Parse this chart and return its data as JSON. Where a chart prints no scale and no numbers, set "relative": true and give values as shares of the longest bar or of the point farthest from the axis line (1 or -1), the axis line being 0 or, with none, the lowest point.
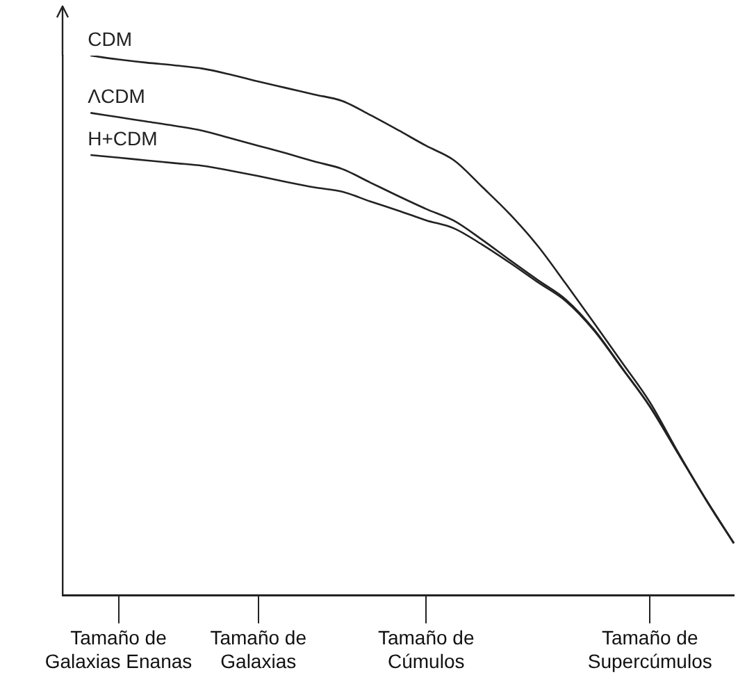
{
  "chart_data": {
    "type": "line",
    "relative": true,
    "categories": [
      null,
      null,
      "Tamaño de\nGalaxias Enanas",
      null,
      null,
      null,
      null,
      "Tamaño de\nGalaxias",
      null,
      null,
      null,
      null,
      null,
      "Tamaño de\nCúmulos",
      null,
      null,
      null,
      null,
      null,
      null,
      null,
      "Tamaño de\nSupercúmulos",
      null,
      null,
      null
    ],
    "series": [
      {
        "name": "CDM",
        "color": "#222222",
        "values": [
          null,
          1,
          0.993,
          0.987,
          0.982,
          0.976,
          0.965,
          0.952,
          0.94,
          0.928,
          0.916,
          0.89,
          0.862,
          0.833,
          0.806,
          0.757,
          0.706,
          0.647,
          0.577,
          0.505,
          0.432,
          0.358,
          0.266,
          0.178,
          0.097
        ]
      },
      {
        "name": "ΛCDM",
        "color": "#222222",
        "values": [
          null,
          0.894,
          0.886,
          0.878,
          0.87,
          0.861,
          0.847,
          0.833,
          0.819,
          0.804,
          0.79,
          0.765,
          0.74,
          0.716,
          0.694,
          0.659,
          0.621,
          0.584,
          0.548,
          0.493,
          0.422,
          0.35,
          0.264,
          0.178,
          0.097
        ]
      },
      {
        "name": "H+CDM",
        "color": "#222222",
        "values": [
          null,
          0.816,
          0.811,
          0.806,
          0.801,
          0.796,
          0.787,
          0.777,
          0.766,
          0.756,
          0.748,
          0.73,
          0.713,
          0.695,
          0.68,
          0.65,
          0.616,
          0.58,
          0.545,
          0.491,
          0.421,
          0.35,
          0.264,
          0.178,
          0.097
        ]
      }
    ],
    "legend": false,
    "grid": false,
    "tick_labels": "x",
    "marker": "none",
    "line_style": "solid"
  }
}
